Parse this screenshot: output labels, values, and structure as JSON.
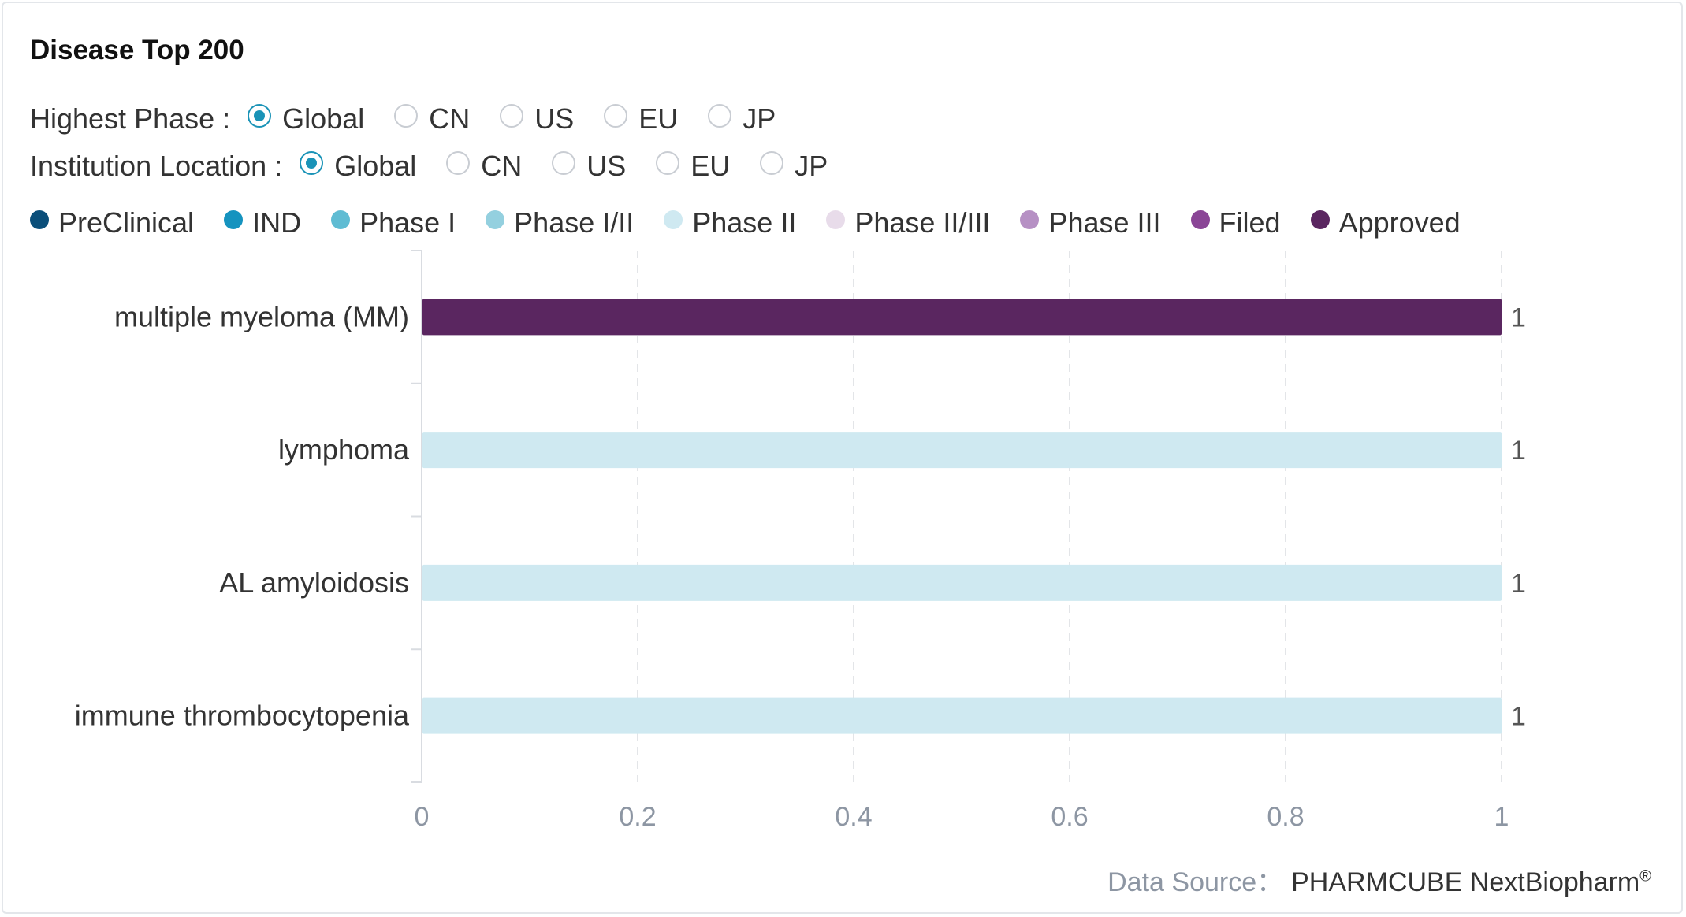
{
  "title": "Disease Top 200",
  "filters": {
    "highest_phase": {
      "label": "Highest Phase :",
      "options": [
        "Global",
        "CN",
        "US",
        "EU",
        "JP"
      ],
      "selected": "Global"
    },
    "institution_location": {
      "label": "Institution Location :",
      "options": [
        "Global",
        "CN",
        "US",
        "EU",
        "JP"
      ],
      "selected": "Global"
    }
  },
  "legend": [
    {
      "name": "PreClinical",
      "color": "#0b4f7a"
    },
    {
      "name": "IND",
      "color": "#1593bf"
    },
    {
      "name": "Phase I",
      "color": "#5fbcd3"
    },
    {
      "name": "Phase I/II",
      "color": "#94d0df"
    },
    {
      "name": "Phase II",
      "color": "#cfe9f1"
    },
    {
      "name": "Phase II/III",
      "color": "#e8dcea"
    },
    {
      "name": "Phase III",
      "color": "#b690c4"
    },
    {
      "name": "Filed",
      "color": "#8a4596"
    },
    {
      "name": "Approved",
      "color": "#5a2660"
    }
  ],
  "chart_data": {
    "type": "bar",
    "orientation": "horizontal",
    "categories": [
      "multiple myeloma (MM)",
      "lymphoma",
      "AL amyloidosis",
      "immune thrombocytopenia"
    ],
    "values": [
      1,
      1,
      1,
      1
    ],
    "bar_phases": [
      "Approved",
      "Phase II",
      "Phase II",
      "Phase II"
    ],
    "bar_colors": [
      "#5a2660",
      "#cfe9f1",
      "#cfe9f1",
      "#cfe9f1"
    ],
    "data_labels": [
      "1",
      "1",
      "1",
      "1"
    ],
    "x_ticks": [
      "0",
      "0.2",
      "0.4",
      "0.6",
      "0.8",
      "1"
    ],
    "xlim": [
      0,
      1
    ],
    "grid": "vertical dashed"
  },
  "source": {
    "label": "Data Source：",
    "text": "PHARMCUBE NextBiopharm",
    "mark": "®"
  }
}
